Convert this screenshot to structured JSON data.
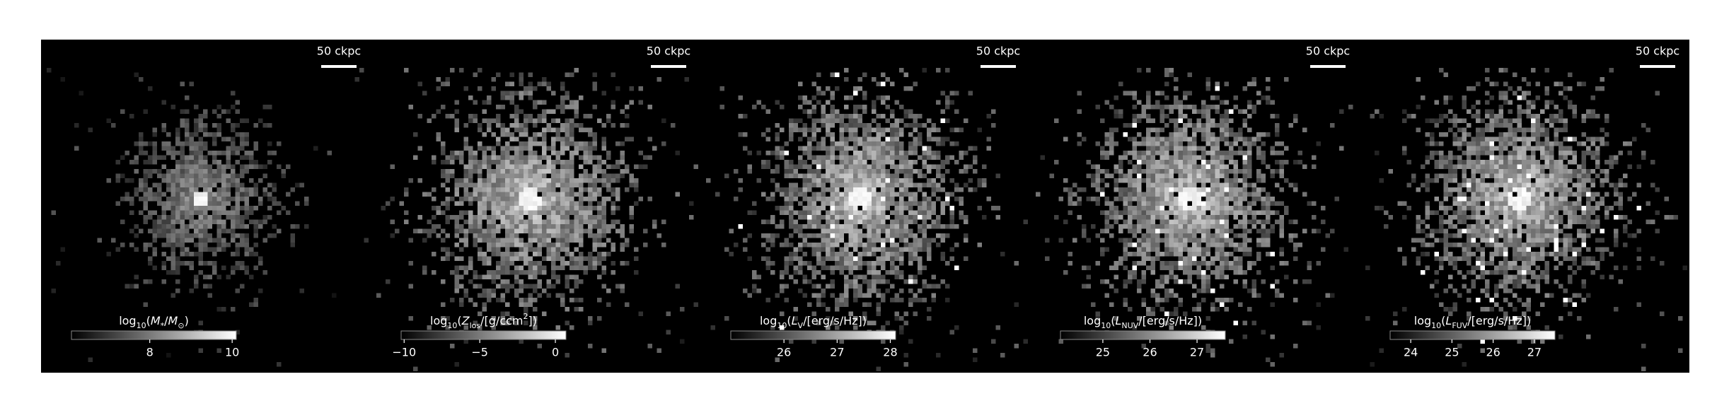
{
  "chart_data": [
    {
      "type": "image",
      "scalebar": "50 ckpc",
      "colorbar_label": [
        {
          "text": "log",
          "style": "normal"
        },
        {
          "text": "10",
          "style": "sub"
        },
        {
          "text": "(",
          "style": "normal"
        },
        {
          "text": "M",
          "style": "italic"
        },
        {
          "text": "*",
          "style": "sub"
        },
        {
          "text": "/",
          "style": "normal"
        },
        {
          "text": "M",
          "style": "italic"
        },
        {
          "text": "⊙",
          "style": "sub"
        },
        {
          "text": ")",
          "style": "normal"
        }
      ],
      "clim": [
        6.1,
        10.1
      ],
      "cticks": [
        8,
        10
      ],
      "cmap": [
        "#000000",
        "#ffffff"
      ]
    },
    {
      "type": "image",
      "scalebar": "50 ckpc",
      "colorbar_label": [
        {
          "text": "log",
          "style": "normal"
        },
        {
          "text": "10",
          "style": "sub"
        },
        {
          "text": "(",
          "style": "normal"
        },
        {
          "text": "Z",
          "style": "italic"
        },
        {
          "text": "los",
          "style": "sub"
        },
        {
          "text": "/[g/ccm",
          "style": "normal"
        },
        {
          "text": "2",
          "style": "sup"
        },
        {
          "text": "])",
          "style": "normal"
        }
      ],
      "clim": [
        -10.2,
        0.7
      ],
      "cticks": [
        {
          "value": -10,
          "label": "−10"
        },
        {
          "value": -5,
          "label": "−5"
        },
        0
      ],
      "cmap": [
        "#000000",
        "#ffffff"
      ]
    },
    {
      "type": "image",
      "scalebar": "50 ckpc",
      "colorbar_label": [
        {
          "text": "log",
          "style": "normal"
        },
        {
          "text": "10",
          "style": "sub"
        },
        {
          "text": "(",
          "style": "normal"
        },
        {
          "text": "L",
          "style": "italic"
        },
        {
          "text": "V",
          "style": "sub"
        },
        {
          "text": "/[erg/s/Hz])",
          "style": "normal"
        }
      ],
      "clim": [
        25.0,
        28.1
      ],
      "cticks": [
        26,
        27,
        28
      ],
      "cmap": [
        "#000000",
        "#ffffff"
      ]
    },
    {
      "type": "image",
      "scalebar": "50 ckpc",
      "colorbar_label": [
        {
          "text": "log",
          "style": "normal"
        },
        {
          "text": "10",
          "style": "sub"
        },
        {
          "text": "(",
          "style": "normal"
        },
        {
          "text": "L",
          "style": "italic"
        },
        {
          "text": "NUV",
          "style": "sub"
        },
        {
          "text": "/[erg/s/Hz])",
          "style": "normal"
        }
      ],
      "clim": [
        24.1,
        27.6
      ],
      "cticks": [
        25,
        26,
        27
      ],
      "cmap": [
        "#000000",
        "#ffffff"
      ]
    },
    {
      "type": "image",
      "scalebar": "50 ckpc",
      "colorbar_label": [
        {
          "text": "log",
          "style": "normal"
        },
        {
          "text": "10",
          "style": "sub"
        },
        {
          "text": "(",
          "style": "normal"
        },
        {
          "text": "L",
          "style": "italic"
        },
        {
          "text": "FUV",
          "style": "sub"
        },
        {
          "text": "/[erg/s/Hz])",
          "style": "normal"
        }
      ],
      "clim": [
        23.5,
        27.5
      ],
      "cticks": [
        24,
        25,
        26,
        27
      ],
      "cmap": [
        "#000000",
        "#ffffff"
      ]
    }
  ]
}
